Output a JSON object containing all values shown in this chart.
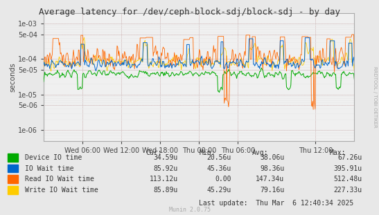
{
  "title": "Average latency for /dev/ceph-block-sdj/block-sdj - by day",
  "ylabel": "seconds",
  "watermark": "RRDTOOL / TOBI OETIKER",
  "munin_version": "Munin 2.0.75",
  "background_color": "#e8e8e8",
  "plot_bg_color": "#f0f0f0",
  "grid_color": "#ffffff",
  "grid_color_minor": "#e0e0e0",
  "border_color": "#aaaaaa",
  "red_line_color": "#ffaaaa",
  "yticks": [
    1e-06,
    5e-06,
    1e-05,
    5e-05,
    0.0001,
    0.0005,
    0.001
  ],
  "ytick_labels": [
    "1e-06",
    "5e-06",
    "1e-05",
    "5e-05",
    "1e-04",
    "5e-04",
    "1e-03"
  ],
  "num_points": 500,
  "colors": {
    "device_io": "#00aa00",
    "io_wait": "#0066cc",
    "read_io_wait": "#ff6600",
    "write_io_wait": "#ffcc00"
  },
  "legend_items": [
    {
      "label": "Device IO time",
      "color": "#00aa00",
      "cur": "34.59u",
      "min": "20.56u",
      "avg": "38.06u",
      "max": "67.26u"
    },
    {
      "label": "IO Wait time",
      "color": "#0066cc",
      "cur": "85.92u",
      "min": "45.36u",
      "avg": "98.36u",
      "max": "395.91u"
    },
    {
      "label": "Read IO Wait time",
      "color": "#ff6600",
      "cur": "113.12u",
      "min": "0.00",
      "avg": "147.34u",
      "max": "512.48u"
    },
    {
      "label": "Write IO Wait time",
      "color": "#ffcc00",
      "cur": "85.89u",
      "min": "45.29u",
      "avg": "79.16u",
      "max": "227.33u"
    }
  ],
  "last_update": "Last update:  Thu Mar  6 12:40:34 2025",
  "xtick_labels": [
    "Wed 06:00",
    "Wed 12:00",
    "Wed 18:00",
    "Thu 00:00",
    "Thu 06:00",
    "Thu 12:00"
  ],
  "xtick_positions": [
    0.125,
    0.25,
    0.375,
    0.5,
    0.625,
    0.875
  ]
}
